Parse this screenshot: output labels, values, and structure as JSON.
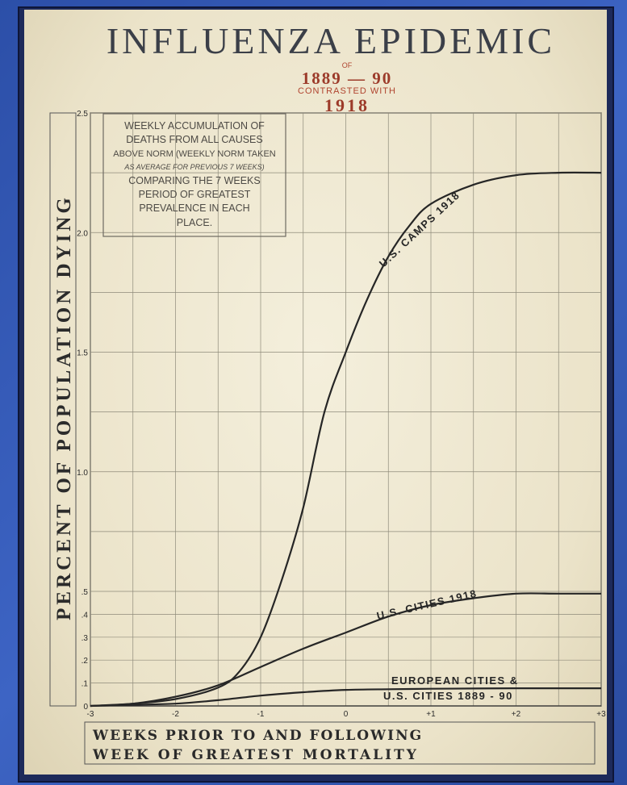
{
  "chart_data": {
    "type": "line",
    "title": "INFLUENZA EPIDEMIC",
    "subtitle_lines": [
      "OF",
      "1889 — 90",
      "CONTRASTED WITH",
      "1918"
    ],
    "ylabel": "PERCENT OF POPULATION DYING",
    "xlabel_lines": [
      "WEEKS PRIOR TO AND FOLLOWING",
      "WEEK OF GREATEST MORTALITY"
    ],
    "xlim": [
      -3,
      3
    ],
    "ylim": [
      0,
      2.5
    ],
    "x_ticks": [
      {
        "value": -3,
        "label": "-3"
      },
      {
        "value": -2,
        "label": "-2"
      },
      {
        "value": -1,
        "label": "-1"
      },
      {
        "value": 0,
        "label": "0"
      },
      {
        "value": 1,
        "label": "+1"
      },
      {
        "value": 2,
        "label": "+2"
      },
      {
        "value": 3,
        "label": "+3"
      }
    ],
    "y_ticks": [
      {
        "value": 0,
        "label": "0"
      },
      {
        "value": 0.1,
        "label": ".1"
      },
      {
        "value": 0.2,
        "label": ".2"
      },
      {
        "value": 0.3,
        "label": ".3"
      },
      {
        "value": 0.4,
        "label": ".4"
      },
      {
        "value": 0.5,
        "label": ".5"
      },
      {
        "value": 1.0,
        "label": "1.0"
      },
      {
        "value": 1.5,
        "label": "1.5"
      },
      {
        "value": 2.0,
        "label": "2.0"
      },
      {
        "value": 2.5,
        "label": "2.5"
      }
    ],
    "annotation_lines": [
      "WEEKLY ACCUMULATION OF",
      "DEATHS FROM ALL CAUSES",
      "ABOVE NORM (WEEKLY NORM TAKEN",
      "AS AVERAGE FOR PREVIOUS 7 WEEKS)",
      "COMPARING THE 7 WEEKS",
      "PERIOD OF GREATEST",
      "PREVALENCE IN EACH",
      "PLACE."
    ],
    "series": [
      {
        "name": "U.S. CAMPS 1918",
        "x": [
          -3,
          -2.5,
          -2,
          -1.5,
          -1.25,
          -1,
          -0.75,
          -0.5,
          -0.25,
          0,
          0.25,
          0.5,
          0.75,
          1,
          1.5,
          2,
          2.5,
          3
        ],
        "y": [
          0,
          0.01,
          0.03,
          0.08,
          0.15,
          0.3,
          0.55,
          0.85,
          1.25,
          1.5,
          1.72,
          1.9,
          2.03,
          2.12,
          2.2,
          2.24,
          2.25,
          2.25
        ]
      },
      {
        "name": "U.S. CITIES 1918",
        "x": [
          -3,
          -2.5,
          -2,
          -1.5,
          -1,
          -0.5,
          0,
          0.5,
          1,
          1.5,
          2,
          2.5,
          3
        ],
        "y": [
          0,
          0.01,
          0.04,
          0.09,
          0.17,
          0.25,
          0.32,
          0.39,
          0.44,
          0.47,
          0.49,
          0.49,
          0.49
        ]
      },
      {
        "name": "EUROPEAN CITIES & U.S. CITIES 1889 - 90",
        "label_lines": [
          "EUROPEAN CITIES &",
          "U.S. CITIES 1889 - 90"
        ],
        "x": [
          -3,
          -2.5,
          -2,
          -1.5,
          -1,
          -0.5,
          0,
          0.5,
          1,
          1.5,
          2,
          2.5,
          3
        ],
        "y": [
          0,
          0.005,
          0.01,
          0.025,
          0.045,
          0.06,
          0.07,
          0.073,
          0.075,
          0.076,
          0.077,
          0.077,
          0.077
        ]
      }
    ]
  }
}
